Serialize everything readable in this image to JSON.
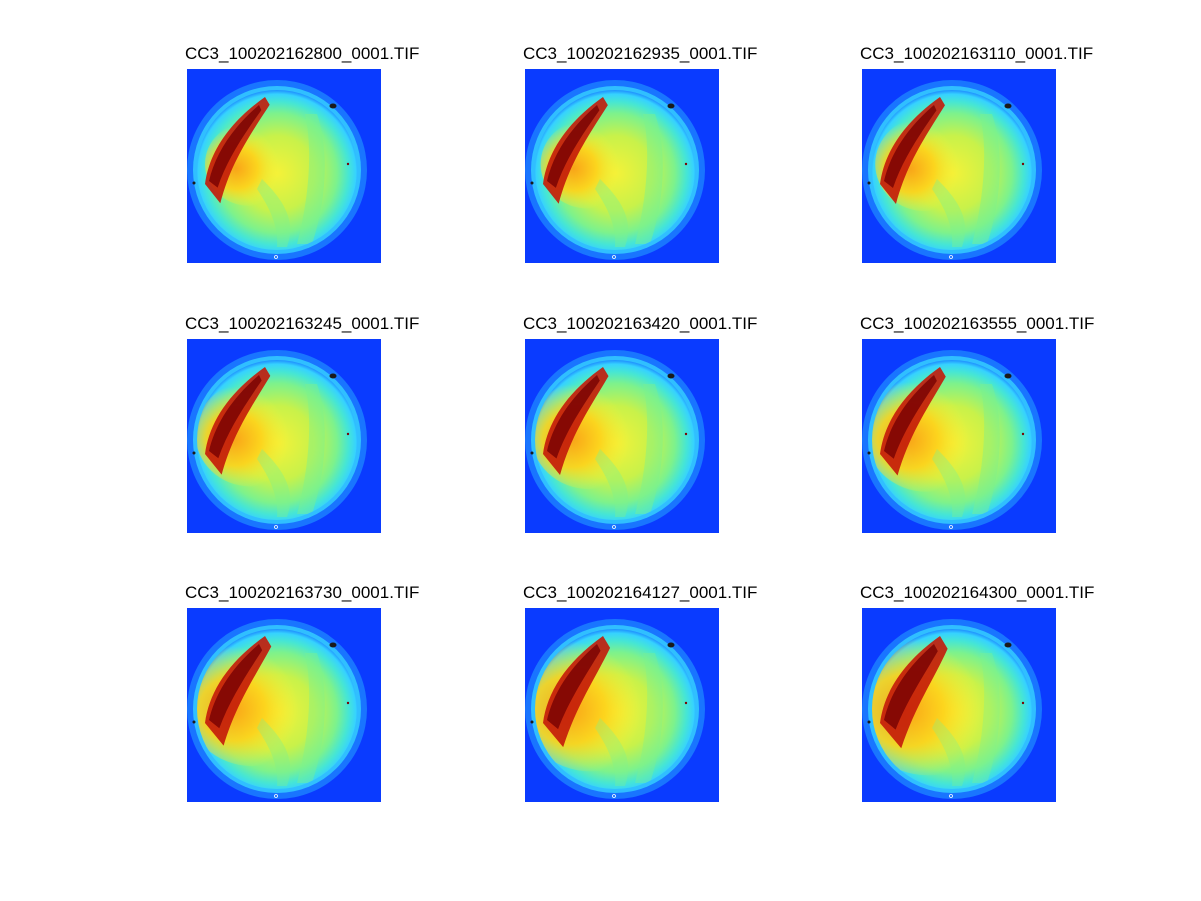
{
  "colors": {
    "background": "#ffffff",
    "image_background": "#0a3bff",
    "colormap": [
      "#0c2bff",
      "#1f8fff",
      "#36d2ff",
      "#46e6d4",
      "#7df28c",
      "#c8f24a",
      "#f5f238",
      "#ffd21a",
      "#ff9c12",
      "#f05a10",
      "#c31a0a",
      "#7a0404"
    ]
  },
  "panels": [
    {
      "title": "CC3_100202162800_0001.TIF",
      "cloud_intensity": 0.25,
      "bright_fraction": 0.2
    },
    {
      "title": "CC3_100202162935_0001.TIF",
      "cloud_intensity": 0.28,
      "bright_fraction": 0.24
    },
    {
      "title": "CC3_100202163110_0001.TIF",
      "cloud_intensity": 0.3,
      "bright_fraction": 0.28
    },
    {
      "title": "CC3_100202163245_0001.TIF",
      "cloud_intensity": 0.35,
      "bright_fraction": 0.36
    },
    {
      "title": "CC3_100202163420_0001.TIF",
      "cloud_intensity": 0.38,
      "bright_fraction": 0.4
    },
    {
      "title": "CC3_100202163555_0001.TIF",
      "cloud_intensity": 0.42,
      "bright_fraction": 0.44
    },
    {
      "title": "CC3_100202163730_0001.TIF",
      "cloud_intensity": 0.5,
      "bright_fraction": 0.52
    },
    {
      "title": "CC3_100202164127_0001.TIF",
      "cloud_intensity": 0.62,
      "bright_fraction": 0.6
    },
    {
      "title": "CC3_100202164300_0001.TIF",
      "cloud_intensity": 0.7,
      "bright_fraction": 0.66
    }
  ]
}
